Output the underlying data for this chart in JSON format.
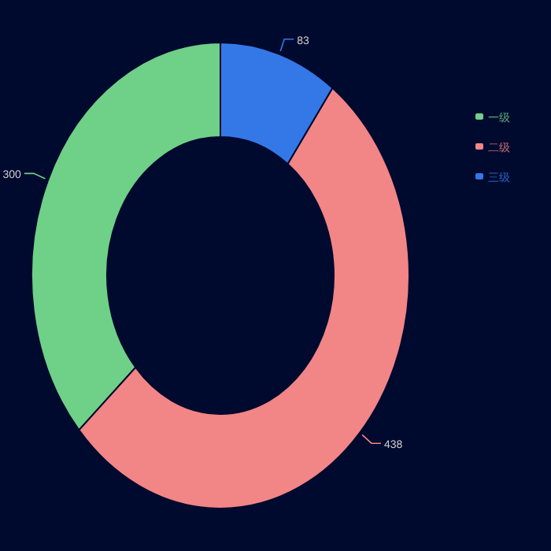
{
  "chart_data": {
    "type": "donut",
    "categories": [
      "一级",
      "二级",
      "三级"
    ],
    "values": [
      300,
      438,
      83
    ],
    "colors": [
      "#6fd087",
      "#f28585",
      "#3478e8"
    ],
    "data_labels": true,
    "legend": "right"
  }
}
